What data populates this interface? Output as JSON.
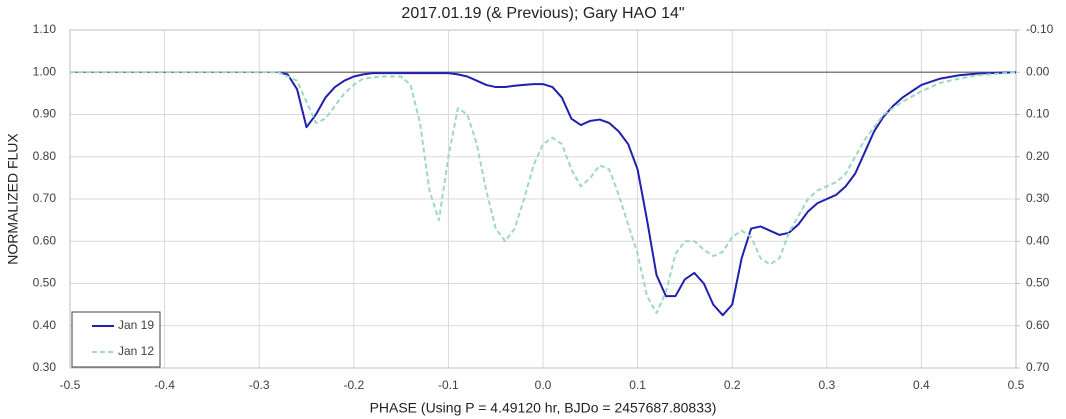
{
  "chart_data": {
    "type": "line",
    "title": "2017.01.19 (& Previous); Gary HAO 14\"",
    "x_label": "PHASE (Using P = 4.49120 hr, BJDo = 2457687.80833)",
    "y_label": "NORMALIZED FLUX",
    "xlim": [
      -0.5,
      0.5
    ],
    "xticks": [
      -0.5,
      -0.4,
      -0.3,
      -0.2,
      -0.1,
      {
        "value": 0,
        "label": "0.0"
      },
      0.1,
      0.2,
      0.3,
      0.4,
      0.5
    ],
    "ylim": [
      0.3,
      1.1
    ],
    "yticks": [
      {
        "value": 0.3,
        "label": "0.30"
      },
      {
        "value": 0.4,
        "label": "0.40"
      },
      {
        "value": 0.5,
        "label": "0.50"
      },
      {
        "value": 0.6,
        "label": "0.60"
      },
      {
        "value": 0.7,
        "label": "0.70"
      },
      {
        "value": 0.8,
        "label": "0.80"
      },
      {
        "value": 0.9,
        "label": "0.90"
      },
      {
        "value": 1.0,
        "label": "1.00"
      },
      {
        "value": 1.1,
        "label": "1.10"
      }
    ],
    "y2lim": [
      0.7,
      -0.1
    ],
    "y2ticks": [
      {
        "value": 0.7,
        "label": "0.70"
      },
      {
        "value": 0.6,
        "label": "0.60"
      },
      {
        "value": 0.5,
        "label": "0.50"
      },
      {
        "value": 0.4,
        "label": "0.40"
      },
      {
        "value": 0.3,
        "label": "0.30"
      },
      {
        "value": 0.2,
        "label": "0.20"
      },
      {
        "value": 0.1,
        "label": "0.10"
      },
      {
        "value": 0,
        "label": "0.00"
      },
      {
        "value": -0.1,
        "label": "-0.10"
      }
    ],
    "reference_line": 1.0,
    "grid": true,
    "legend": "lower left",
    "series": [
      {
        "name": "Jan 19",
        "color": "#1f1fb0",
        "dashed": false,
        "x": [
          -0.28,
          -0.27,
          -0.26,
          -0.25,
          -0.24,
          -0.23,
          -0.22,
          -0.21,
          -0.2,
          -0.19,
          -0.18,
          -0.1,
          -0.09,
          -0.08,
          -0.07,
          -0.06,
          -0.05,
          -0.04,
          -0.03,
          -0.02,
          -0.01,
          0.0,
          0.01,
          0.02,
          0.03,
          0.04,
          0.05,
          0.06,
          0.07,
          0.08,
          0.09,
          0.1,
          0.11,
          0.12,
          0.13,
          0.14,
          0.15,
          0.16,
          0.17,
          0.18,
          0.19,
          0.2,
          0.21,
          0.22,
          0.23,
          0.24,
          0.25,
          0.26,
          0.27,
          0.28,
          0.29,
          0.3,
          0.31,
          0.32,
          0.33,
          0.34,
          0.35,
          0.36,
          0.37,
          0.38,
          0.39,
          0.4,
          0.42,
          0.44,
          0.46,
          0.5
        ],
        "values": [
          1.0,
          0.995,
          0.96,
          0.87,
          0.9,
          0.94,
          0.965,
          0.98,
          0.99,
          0.995,
          0.998,
          0.998,
          0.995,
          0.99,
          0.98,
          0.97,
          0.965,
          0.965,
          0.968,
          0.97,
          0.972,
          0.972,
          0.965,
          0.94,
          0.89,
          0.875,
          0.885,
          0.888,
          0.88,
          0.86,
          0.83,
          0.77,
          0.65,
          0.52,
          0.47,
          0.47,
          0.51,
          0.525,
          0.5,
          0.45,
          0.425,
          0.45,
          0.56,
          0.63,
          0.635,
          0.625,
          0.615,
          0.62,
          0.64,
          0.67,
          0.69,
          0.7,
          0.71,
          0.73,
          0.76,
          0.81,
          0.86,
          0.895,
          0.92,
          0.94,
          0.955,
          0.97,
          0.985,
          0.993,
          0.997,
          1.0
        ]
      },
      {
        "name": "Jan 12",
        "color": "#9fd8c0",
        "dashed": true,
        "x": [
          -0.5,
          -0.28,
          -0.26,
          -0.25,
          -0.24,
          -0.23,
          -0.22,
          -0.21,
          -0.2,
          -0.19,
          -0.17,
          -0.15,
          -0.14,
          -0.13,
          -0.12,
          -0.11,
          -0.1,
          -0.09,
          -0.08,
          -0.07,
          -0.06,
          -0.05,
          -0.04,
          -0.03,
          -0.02,
          -0.01,
          0.0,
          0.01,
          0.02,
          0.03,
          0.04,
          0.05,
          0.06,
          0.07,
          0.08,
          0.09,
          0.1,
          0.11,
          0.12,
          0.13,
          0.14,
          0.15,
          0.16,
          0.17,
          0.18,
          0.19,
          0.2,
          0.21,
          0.22,
          0.23,
          0.24,
          0.25,
          0.26,
          0.27,
          0.28,
          0.29,
          0.3,
          0.31,
          0.32,
          0.33,
          0.34,
          0.35,
          0.36,
          0.38,
          0.4,
          0.42,
          0.44,
          0.46,
          0.5
        ],
        "values": [
          1.0,
          1.0,
          0.98,
          0.93,
          0.88,
          0.89,
          0.92,
          0.95,
          0.97,
          0.985,
          0.99,
          0.99,
          0.97,
          0.88,
          0.72,
          0.65,
          0.8,
          0.915,
          0.9,
          0.83,
          0.72,
          0.63,
          0.6,
          0.63,
          0.7,
          0.78,
          0.83,
          0.845,
          0.83,
          0.77,
          0.73,
          0.75,
          0.78,
          0.77,
          0.71,
          0.64,
          0.57,
          0.47,
          0.43,
          0.48,
          0.57,
          0.6,
          0.6,
          0.58,
          0.565,
          0.575,
          0.61,
          0.625,
          0.61,
          0.56,
          0.545,
          0.56,
          0.62,
          0.66,
          0.7,
          0.72,
          0.73,
          0.74,
          0.76,
          0.8,
          0.84,
          0.87,
          0.9,
          0.93,
          0.955,
          0.975,
          0.985,
          0.993,
          1.0
        ]
      }
    ]
  }
}
